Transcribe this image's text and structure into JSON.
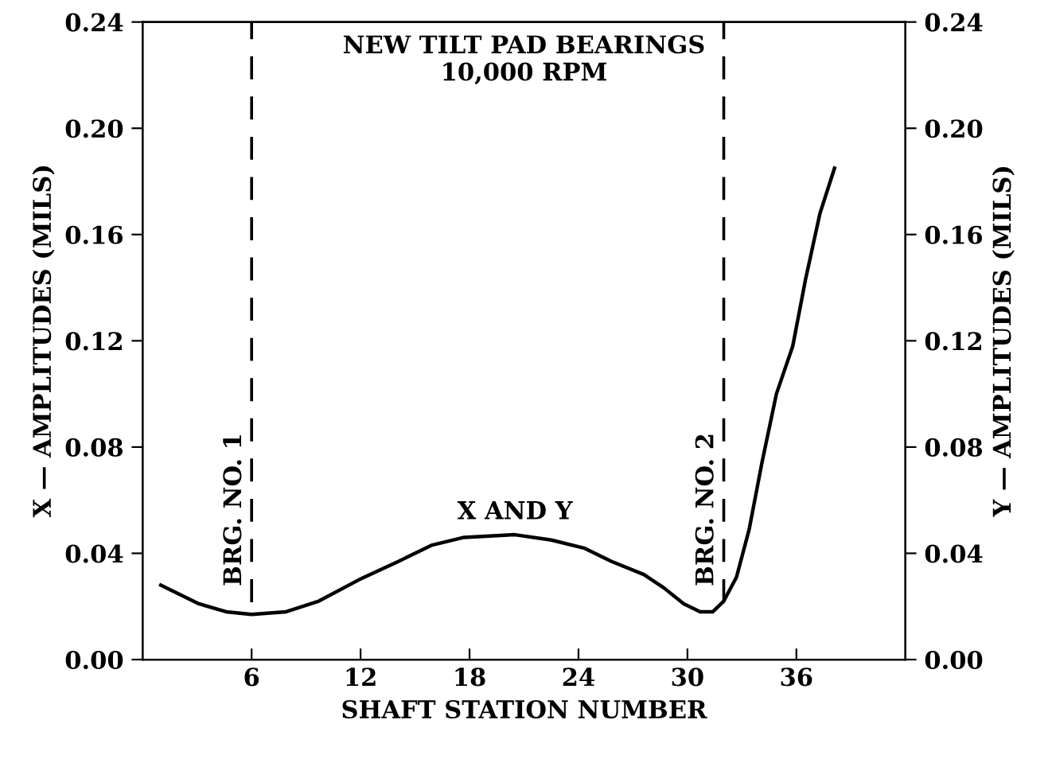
{
  "chart_data": {
    "type": "line",
    "title": "NEW TILT PAD BEARINGS\n10,000 RPM",
    "xlabel": "SHAFT STATION NUMBER",
    "ylabel": "X — AMPLITUDES (MILS)",
    "y2label": "Y — AMPLITUDES (MILS)",
    "xlim": [
      0,
      42
    ],
    "xticks": [
      6,
      12,
      18,
      24,
      30,
      36
    ],
    "ylim": [
      0,
      0.24
    ],
    "yticks": [
      {
        "value": 0,
        "label": "0.00"
      },
      {
        "value": 0.04,
        "label": "0.04"
      },
      {
        "value": 0.08,
        "label": "0.08"
      },
      {
        "value": 0.12,
        "label": "0.12"
      },
      {
        "value": 0.16,
        "label": "0.16"
      },
      {
        "value": 0.2,
        "label": "0.20"
      },
      {
        "value": 0.24,
        "label": "0.24"
      }
    ],
    "y2lim": [
      0,
      0.24
    ],
    "y2ticks": [
      {
        "value": 0,
        "label": "0.00"
      },
      {
        "value": 0.04,
        "label": "0.04"
      },
      {
        "value": 0.08,
        "label": "0.08"
      },
      {
        "value": 0.12,
        "label": "0.12"
      },
      {
        "value": 0.16,
        "label": "0.16"
      },
      {
        "value": 0.2,
        "label": "0.20"
      },
      {
        "value": 0.24,
        "label": "0.24"
      }
    ],
    "x": [
      1.0,
      3.1,
      4.6,
      6.0,
      7.9,
      9.7,
      11.9,
      14.1,
      15.9,
      17.7,
      20.5,
      22.5,
      24.3,
      25.8,
      27.6,
      28.7,
      29.8,
      30.7,
      31.4,
      32.0,
      32.7,
      33.4,
      34.1,
      34.9,
      35.8,
      36.5,
      37.3,
      38.1
    ],
    "series": [
      {
        "name": "X AND Y",
        "color": "#000000",
        "values": [
          0.028,
          0.021,
          0.018,
          0.017,
          0.018,
          0.022,
          0.03,
          0.037,
          0.043,
          0.046,
          0.047,
          0.045,
          0.042,
          0.037,
          0.032,
          0.027,
          0.021,
          0.018,
          0.018,
          0.022,
          0.031,
          0.049,
          0.074,
          0.1,
          0.118,
          0.143,
          0.168,
          0.185
        ]
      }
    ],
    "ref_lines": [
      {
        "axis": "x",
        "value": 6,
        "label": "BRG. NO. 1",
        "color": "#000000",
        "line_style": "dashed"
      },
      {
        "axis": "x",
        "value": 32,
        "label": "BRG. NO. 2",
        "color": "#000000",
        "line_style": "dashed"
      }
    ],
    "grid": false,
    "legend": false,
    "marker": "none",
    "line_style": "solid"
  }
}
